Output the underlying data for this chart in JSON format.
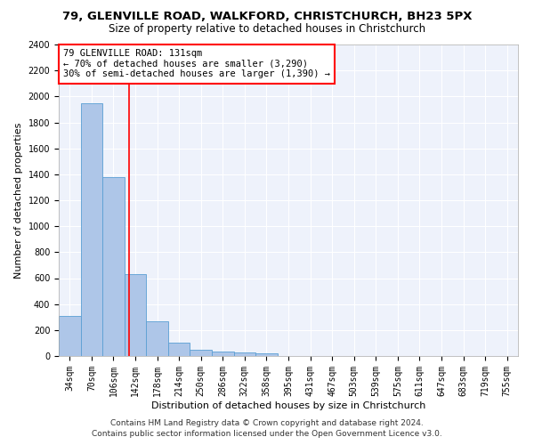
{
  "title1": "79, GLENVILLE ROAD, WALKFORD, CHRISTCHURCH, BH23 5PX",
  "title2": "Size of property relative to detached houses in Christchurch",
  "xlabel": "Distribution of detached houses by size in Christchurch",
  "ylabel": "Number of detached properties",
  "footer1": "Contains HM Land Registry data © Crown copyright and database right 2024.",
  "footer2": "Contains public sector information licensed under the Open Government Licence v3.0.",
  "annotation_line1": "79 GLENVILLE ROAD: 131sqm",
  "annotation_line2": "← 70% of detached houses are smaller (3,290)",
  "annotation_line3": "30% of semi-detached houses are larger (1,390) →",
  "bar_labels": [
    "34sqm",
    "70sqm",
    "106sqm",
    "142sqm",
    "178sqm",
    "214sqm",
    "250sqm",
    "286sqm",
    "322sqm",
    "358sqm",
    "395sqm",
    "431sqm",
    "467sqm",
    "503sqm",
    "539sqm",
    "575sqm",
    "611sqm",
    "647sqm",
    "683sqm",
    "719sqm",
    "755sqm"
  ],
  "bar_values": [
    310,
    1950,
    1380,
    630,
    270,
    100,
    47,
    33,
    27,
    20,
    0,
    0,
    0,
    0,
    0,
    0,
    0,
    0,
    0,
    0,
    0
  ],
  "bar_color": "#aec6e8",
  "bar_edge_color": "#5a9fd4",
  "vline_x": 2.72,
  "vline_color": "red",
  "ylim": [
    0,
    2400
  ],
  "yticks": [
    0,
    200,
    400,
    600,
    800,
    1000,
    1200,
    1400,
    1600,
    1800,
    2000,
    2200,
    2400
  ],
  "annotation_box_color": "red",
  "background_color": "#eef2fb",
  "grid_color": "#ffffff",
  "title1_fontsize": 9.5,
  "title2_fontsize": 8.5,
  "axis_label_fontsize": 8,
  "tick_fontsize": 7,
  "footer_fontsize": 6.5,
  "annotation_fontsize": 7.5
}
